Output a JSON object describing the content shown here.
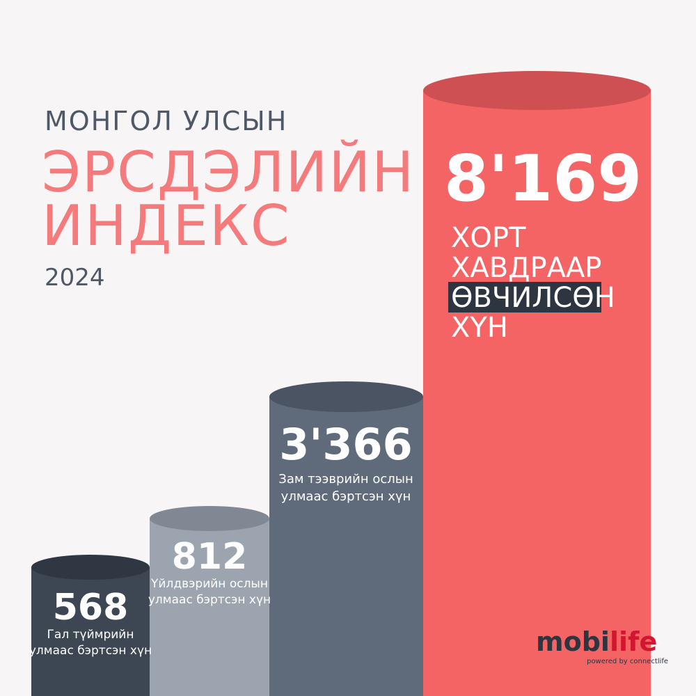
{
  "header": {
    "subtitle": "МОНГОЛ УЛСЫН",
    "title_line1": "ЭРСДЭЛИЙН",
    "title_line2": "ИНДЕКС",
    "year": "2024"
  },
  "items": [
    {
      "value": "568",
      "caption_lines": [
        "Гал түймрийн",
        "улмаас бэртсэн хүн"
      ]
    },
    {
      "value": "812",
      "caption_lines": [
        "Үйлдвэрийн ослын",
        "улмаас бэртсэн хүн"
      ]
    },
    {
      "value": "3'366",
      "caption_lines": [
        "Зам тээврийн ослын",
        "улмаас бэртсэн хүн"
      ]
    },
    {
      "value": "8'169",
      "caption_lines": [
        "ХОРТ",
        "ХАВДРААР",
        "ӨВЧИЛСӨН",
        "ХҮН"
      ]
    }
  ],
  "logo": {
    "brand_parts": [
      "mobi",
      "life"
    ],
    "tagline": "powered by connectlife"
  }
}
